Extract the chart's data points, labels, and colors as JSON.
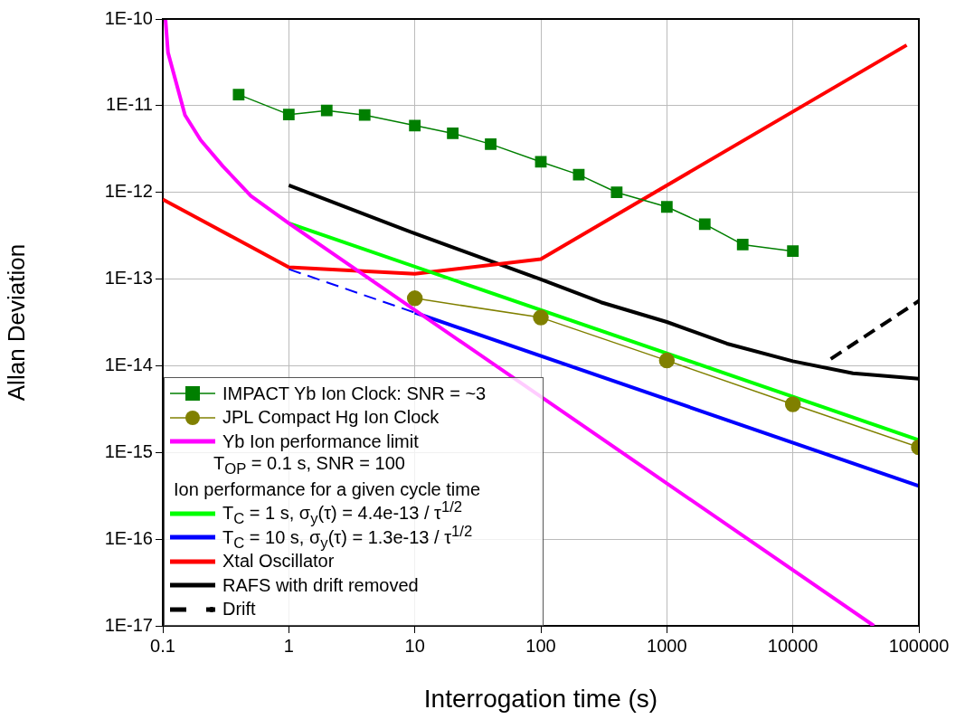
{
  "chart_data": {
    "type": "line",
    "xlabel": "Interrogation time (s)",
    "ylabel": "Allan Deviation",
    "log": "xy",
    "grid": true,
    "legend": "bottom left",
    "xlim": [
      0.1,
      100000
    ],
    "xticks": [
      0.1,
      1,
      10,
      100,
      1000,
      10000,
      100000
    ],
    "ylim": [
      1e-17,
      1e-10
    ],
    "yticks": [
      {
        "value": 1e-17,
        "label": "1E-17"
      },
      {
        "value": 1e-16,
        "label": "1E-16"
      },
      {
        "value": 1e-15,
        "label": "1E-15"
      },
      {
        "value": 1e-14,
        "label": "1E-14"
      },
      {
        "value": 1e-13,
        "label": "1E-13"
      },
      {
        "value": 1e-12,
        "label": "1E-12"
      },
      {
        "value": 1e-11,
        "label": "1E-11"
      },
      {
        "value": 1e-10,
        "label": "1E-10"
      }
    ],
    "annotations": [
      "T$_{OP}$ = 0.1 s, SNR = 100",
      "Ion performance for a given cycle time"
    ],
    "series": [
      {
        "name": "IMPACT Yb Ion Clock: SNR = ~3",
        "color": "#007f00",
        "marker": "square",
        "x": [
          0.4,
          1,
          2,
          4,
          10,
          20,
          40,
          100,
          200,
          400,
          1000,
          2000,
          4000,
          10000
        ],
        "values": [
          1.34e-11,
          7.9e-12,
          8.8e-12,
          7.8e-12,
          5.9e-12,
          4.8e-12,
          3.6e-12,
          2.25e-12,
          1.6e-12,
          1e-12,
          6.8e-13,
          4.3e-13,
          2.5e-13,
          2.1e-13
        ]
      },
      {
        "name": "JPL Compact Hg Ion Clock",
        "color": "#808000",
        "marker": "circle",
        "x": [
          10,
          100,
          1000,
          10000,
          100000
        ],
        "values": [
          6e-14,
          3.6e-14,
          1.15e-14,
          3.6e-15,
          1.15e-15
        ]
      },
      {
        "name": "Yb Ion performance limit",
        "color": "#ff00ff",
        "x": [
          0.105,
          0.11,
          0.15,
          0.2,
          0.3,
          0.5,
          1,
          44000
        ],
        "values": [
          1e-10,
          4.1e-11,
          7.8e-12,
          4e-12,
          2e-12,
          9.1e-13,
          4.4e-13,
          1e-17
        ]
      },
      {
        "name": "T$_{C}$ = 1 s, σ$_{y}$(τ) = 4.4e-13 / τ$^{1/2}$",
        "color": "#00ff00",
        "x": [
          1,
          100000
        ],
        "values": [
          4.4e-13,
          1.39e-15
        ]
      },
      {
        "name": "T$_{C}$ = 10 s, σ$_{y}$(τ) = 1.3e-13 / τ$^{1/2}$",
        "color": "#0000ff",
        "x": [
          10,
          100000
        ],
        "values": [
          4.1e-14,
          4.1e-16
        ]
      },
      {
        "color": "#0000ff",
        "line_style": "dashed",
        "x": [
          1,
          10
        ],
        "values": [
          1.3e-13,
          4.1e-14
        ]
      },
      {
        "name": "Xtal Oscillator",
        "color": "#ff0000",
        "x": [
          0.1,
          1,
          10,
          100,
          80000
        ],
        "values": [
          8.3e-13,
          1.37e-13,
          1.15e-13,
          1.7e-13,
          5e-11
        ]
      },
      {
        "name": "RAFS with drift removed",
        "color": "#000000",
        "x": [
          1,
          10,
          100,
          300,
          1000,
          3000,
          10000,
          30000,
          100000
        ],
        "values": [
          1.21e-12,
          3.35e-13,
          9.9e-14,
          5.4e-14,
          3.2e-14,
          1.8e-14,
          1.13e-14,
          8.2e-15,
          7.1e-15
        ]
      },
      {
        "name": "Drift",
        "color": "#000000",
        "line_style": "dashed",
        "x": [
          20000,
          100000
        ],
        "values": [
          1.2e-14,
          5.6e-14
        ]
      }
    ]
  }
}
